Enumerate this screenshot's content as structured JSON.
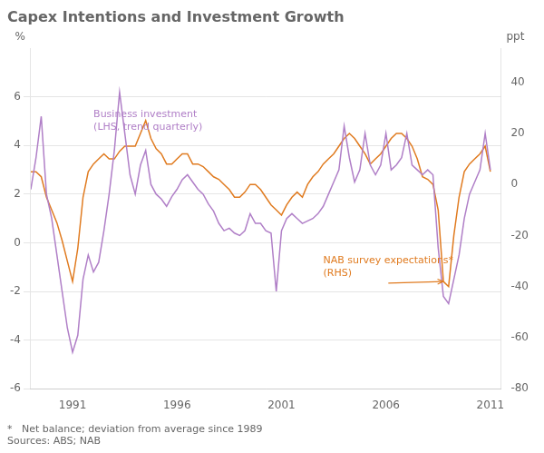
{
  "chart_data": {
    "type": "line",
    "title": "Capex Intentions and Investment Growth",
    "ylabel": "%",
    "y2label": "ppt",
    "footnote": "*   Net balance; deviation from average since 1989\nSources: ABS; NAB",
    "x": [
      1989.0,
      1989.25,
      1989.5,
      1989.75,
      1990.0,
      1990.25,
      1990.5,
      1990.75,
      1991.0,
      1991.25,
      1991.5,
      1991.75,
      1992.0,
      1992.25,
      1992.5,
      1992.75,
      1993.0,
      1993.25,
      1993.5,
      1993.75,
      1994.0,
      1994.25,
      1994.5,
      1994.75,
      1995.0,
      1995.25,
      1995.5,
      1995.75,
      1996.0,
      1996.25,
      1996.5,
      1996.75,
      1997.0,
      1997.25,
      1997.5,
      1997.75,
      1998.0,
      1998.25,
      1998.5,
      1998.75,
      1999.0,
      1999.25,
      1999.5,
      1999.75,
      2000.0,
      2000.25,
      2000.5,
      2000.75,
      2001.0,
      2001.25,
      2001.5,
      2001.75,
      2002.0,
      2002.25,
      2002.5,
      2002.75,
      2003.0,
      2003.25,
      2003.5,
      2003.75,
      2004.0,
      2004.25,
      2004.5,
      2004.75,
      2005.0,
      2005.25,
      2005.5,
      2005.75,
      2006.0,
      2006.25,
      2006.5,
      2006.75,
      2007.0,
      2007.25,
      2007.5,
      2007.75,
      2008.0,
      2008.25,
      2008.5,
      2008.75,
      2009.0,
      2009.25,
      2009.5,
      2009.75,
      2010.0,
      2010.25,
      2010.5,
      2010.75,
      2011.0
    ],
    "series": [
      {
        "color": "#b07fc7",
        "values": [
          2.2,
          3.5,
          5.2,
          2.0,
          1.0,
          -0.5,
          -2.0,
          -3.5,
          -4.5,
          -3.8,
          -1.5,
          -0.5,
          -1.2,
          -0.8,
          0.5,
          2.0,
          3.8,
          6.2,
          4.5,
          2.8,
          2.0,
          3.2,
          3.8,
          2.4,
          2.0,
          1.8,
          1.5,
          1.9,
          2.2,
          2.6,
          2.8,
          2.5,
          2.2,
          2.0,
          1.6,
          1.3,
          0.8,
          0.5,
          0.6,
          0.4,
          0.3,
          0.5,
          1.2,
          0.8,
          0.8,
          0.5,
          0.4,
          -2.0,
          0.5,
          1.0,
          1.2,
          1.0,
          0.8,
          0.9,
          1.0,
          1.2,
          1.5,
          2.0,
          2.5,
          3.0,
          4.8,
          3.5,
          2.5,
          3.0,
          4.5,
          3.2,
          2.8,
          3.2,
          4.5,
          3.0,
          3.2,
          3.5,
          4.5,
          3.2,
          3.0,
          2.8,
          3.0,
          2.8,
          -0.2,
          -2.2,
          -2.5,
          -1.5,
          -0.5,
          1.0,
          2.0,
          2.5,
          3.0,
          4.5,
          3.0
        ]
      },
      {
        "color": "#e07b20",
        "axis": "y2",
        "values": [
          5.0,
          5.0,
          3.0,
          -5.0,
          -10.0,
          -15.0,
          -22.0,
          -30.0,
          -38.0,
          -25.0,
          -5.0,
          5.0,
          8.0,
          10.0,
          12.0,
          10.0,
          10.0,
          13.0,
          15.0,
          15.0,
          15.0,
          20.0,
          25.0,
          18.0,
          14.0,
          12.0,
          8.0,
          8.0,
          10.0,
          12.0,
          12.0,
          8.0,
          8.0,
          7.0,
          5.0,
          3.0,
          2.0,
          0.0,
          -2.0,
          -5.0,
          -5.0,
          -3.0,
          0.0,
          0.0,
          -2.0,
          -5.0,
          -8.0,
          -10.0,
          -12.0,
          -8.0,
          -5.0,
          -3.0,
          -5.0,
          0.0,
          3.0,
          5.0,
          8.0,
          10.0,
          12.0,
          15.0,
          18.0,
          20.0,
          18.0,
          15.0,
          12.0,
          8.0,
          10.0,
          12.0,
          15.0,
          18.0,
          20.0,
          20.0,
          18.0,
          15.0,
          10.0,
          3.0,
          2.0,
          0.0,
          -10.0,
          -38.0,
          -40.0,
          -20.0,
          -5.0,
          5.0,
          8.0,
          10.0,
          12.0,
          15.0,
          5.0
        ]
      }
    ],
    "xlim": [
      1989.0,
      2011.5
    ],
    "xticks": [
      1991,
      1996,
      2001,
      2006,
      2011
    ],
    "ylim": [
      -6,
      8
    ],
    "yticks": [
      -6,
      -4,
      -2,
      0,
      2,
      4,
      6
    ],
    "y2lim": [
      -80,
      53.33
    ],
    "y2ticks": [
      -80,
      -60,
      -40,
      -20,
      0,
      20,
      40
    ],
    "grid": true,
    "annotations": [
      {
        "text": "Business investment\n(LHS, trend quarterly)",
        "x": 1992.0,
        "y": 5.5,
        "axis": "y",
        "color": "#b07fc7"
      },
      {
        "text": "NAB survey expectations*\n(RHS)",
        "x": 2003.0,
        "y": -28.0,
        "axis": "y2",
        "color": "#e07b20",
        "arrow": {
          "x": 2008.75,
          "y": -38.0
        }
      }
    ]
  }
}
